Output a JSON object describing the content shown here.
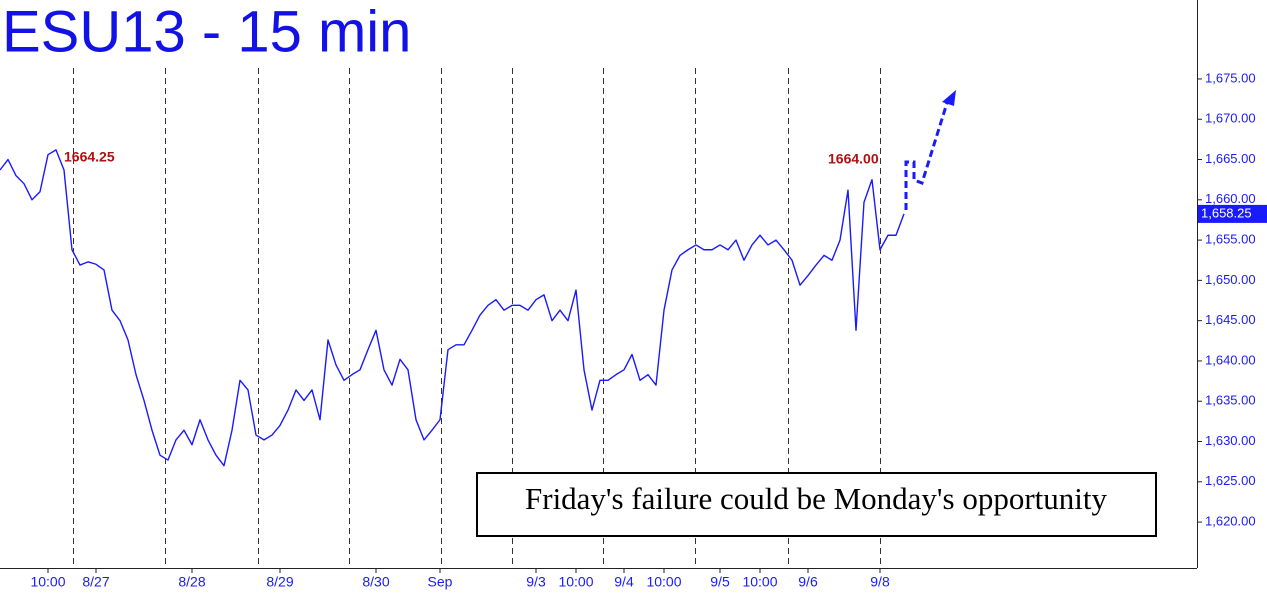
{
  "chart_data": {
    "type": "line",
    "title": "ESU13 - 15 min",
    "categories": [
      null,
      null,
      null,
      null,
      null,
      null,
      "10:00",
      null,
      null,
      null,
      null,
      null,
      "8/27",
      null,
      null,
      null,
      null,
      null,
      null,
      null,
      null,
      null,
      null,
      null,
      "8/28",
      null,
      null,
      null,
      null,
      null,
      null,
      null,
      null,
      null,
      null,
      "8/29",
      null,
      null,
      null,
      null,
      null,
      null,
      null,
      null,
      null,
      null,
      null,
      "8/30",
      null,
      null,
      null,
      null,
      null,
      null,
      null,
      "Sep",
      null,
      null,
      null,
      null,
      null,
      null,
      null,
      null,
      null,
      null,
      null,
      "9/3",
      null,
      null,
      null,
      null,
      "10:00",
      null,
      null,
      null,
      null,
      null,
      "9/4",
      null,
      null,
      null,
      null,
      "10:00",
      null,
      null,
      null,
      null,
      null,
      null,
      "9/5",
      null,
      null,
      null,
      null,
      "10:00",
      null,
      null,
      null,
      null,
      null,
      "9/6",
      null,
      null,
      null,
      null,
      null,
      null,
      null,
      null,
      "9/8",
      null,
      null,
      null
    ],
    "series": [
      {
        "color": "#1a1aff",
        "values": [
          1663.7,
          1665,
          1663,
          1662,
          1660,
          1661,
          1665.6,
          1666.2,
          1663.7,
          1653.8,
          1651.9,
          1652.3,
          1652,
          1651.3,
          1646.3,
          1645,
          1642.6,
          1638.3,
          1635.1,
          1631.4,
          1628.3,
          1627.7,
          1630.2,
          1631.4,
          1629.6,
          1632.7,
          1630.2,
          1628.3,
          1627,
          1631.4,
          1637.6,
          1636.4,
          1630.8,
          1630.2,
          1630.8,
          1632,
          1633.9,
          1636.4,
          1635.1,
          1636.4,
          1632.7,
          1642.6,
          1639.5,
          1637.6,
          1638.3,
          1638.9,
          1641.4,
          1643.8,
          1638.9,
          1637,
          1640.2,
          1638.9,
          1632.7,
          1630.2,
          1631.4,
          1632.7,
          1641.4,
          1642,
          1642,
          1643.8,
          1645.7,
          1646.9,
          1647.6,
          1646.3,
          1646.9,
          1646.9,
          1646.3,
          1647.6,
          1648.2,
          1645,
          1646.3,
          1645,
          1648.8,
          1638.9,
          1633.9,
          1637.6,
          1637.6,
          1638.3,
          1638.9,
          1640.8,
          1637.6,
          1638.3,
          1637,
          1646.3,
          1651.3,
          1653.1,
          1653.8,
          1654.4,
          1653.8,
          1653.8,
          1654.4,
          1653.8,
          1655,
          1652.5,
          1654.4,
          1655.6,
          1654.4,
          1655,
          1653.8,
          1652.5,
          1649.4,
          1650.6,
          1651.9,
          1653.1,
          1652.5,
          1655,
          1661.2,
          1643.8,
          1659.7,
          1662.5,
          1653.8,
          1655.6,
          1655.6,
          1658.25
        ]
      }
    ],
    "ylim": [
      1614.3,
      1684.8
    ],
    "yticks": [
      {
        "value": 1620,
        "label": "1,620.00"
      },
      {
        "value": 1625,
        "label": "1,625.00"
      },
      {
        "value": 1630,
        "label": "1,630.00"
      },
      {
        "value": 1635,
        "label": "1,635.00"
      },
      {
        "value": 1640,
        "label": "1,640.00"
      },
      {
        "value": 1645,
        "label": "1,645.00"
      },
      {
        "value": 1650,
        "label": "1,650.00"
      },
      {
        "value": 1655,
        "label": "1,655.00"
      },
      {
        "value": 1660,
        "label": "1,660.00"
      },
      {
        "value": 1665,
        "label": "1,665.00"
      },
      {
        "value": 1670,
        "label": "1,670.00"
      },
      {
        "value": 1675,
        "label": "1,675.00"
      }
    ],
    "last_price": {
      "value": 1658.25,
      "label": "1,658.25"
    },
    "annotations": [
      "1664.25",
      "1664.00"
    ],
    "note": "Friday's failure could be Monday's opportunity"
  }
}
